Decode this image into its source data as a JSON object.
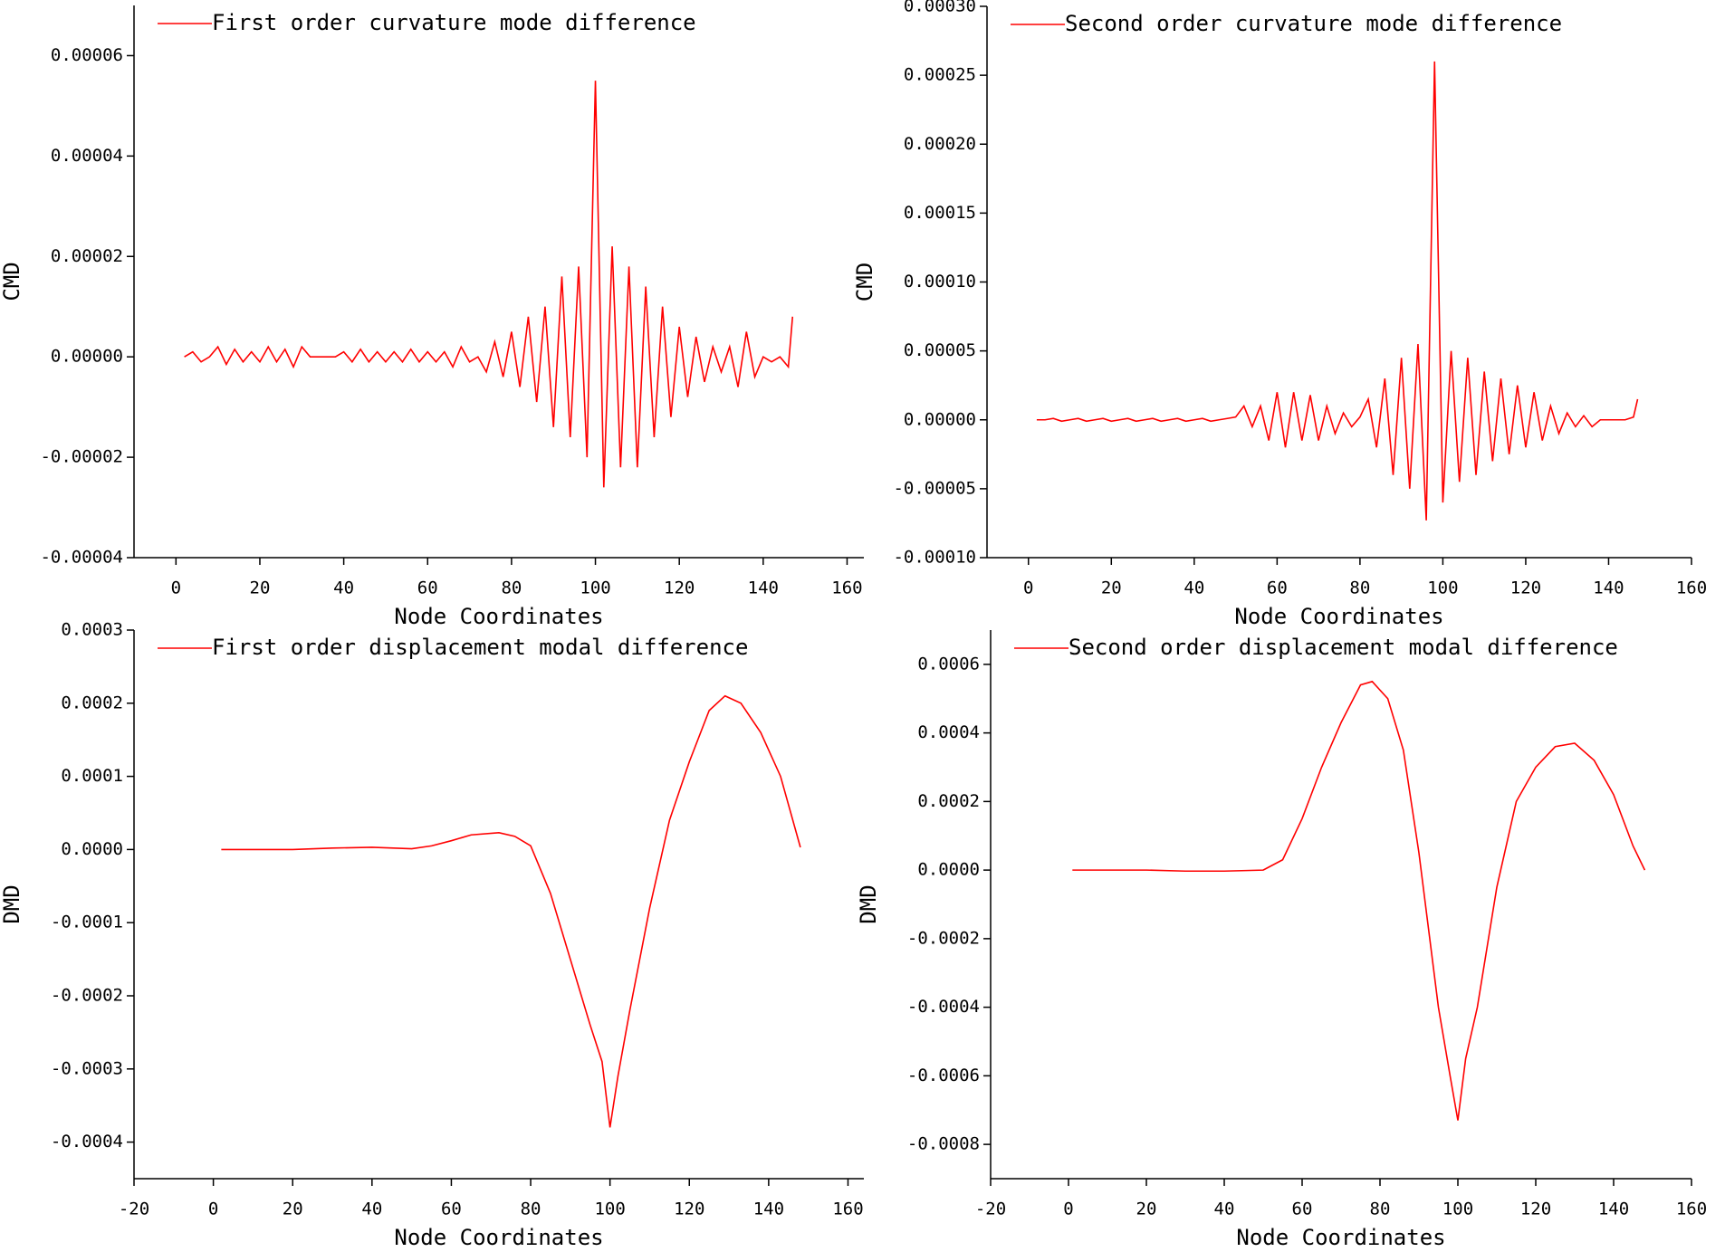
{
  "chart_data": [
    {
      "type": "line",
      "xlabel": "Node Coordinates",
      "ylabel": "CMD",
      "x": [
        2,
        4,
        6,
        8,
        10,
        12,
        14,
        16,
        18,
        20,
        22,
        24,
        26,
        28,
        30,
        32,
        34,
        36,
        38,
        40,
        42,
        44,
        46,
        48,
        50,
        52,
        54,
        56,
        58,
        60,
        62,
        64,
        66,
        68,
        70,
        72,
        74,
        76,
        78,
        80,
        82,
        84,
        86,
        88,
        90,
        92,
        94,
        96,
        98,
        100,
        102,
        104,
        106,
        108,
        110,
        112,
        114,
        116,
        118,
        120,
        122,
        124,
        126,
        128,
        130,
        132,
        134,
        136,
        138,
        140,
        142,
        144,
        146,
        147
      ],
      "series": [
        {
          "name": "First order curvature mode difference",
          "color": "#ff0000",
          "values": [
            0,
            1e-06,
            -1e-06,
            0,
            2e-06,
            -1.5e-06,
            1.5e-06,
            -1e-06,
            1e-06,
            -1e-06,
            2e-06,
            -1e-06,
            1.5e-06,
            -2e-06,
            2e-06,
            0,
            0,
            0,
            0,
            1e-06,
            -1e-06,
            1.5e-06,
            -1e-06,
            1e-06,
            -1e-06,
            1e-06,
            -1e-06,
            1.5e-06,
            -1e-06,
            1e-06,
            -1e-06,
            1e-06,
            -2e-06,
            2e-06,
            -1e-06,
            0,
            -3e-06,
            3e-06,
            -4e-06,
            5e-06,
            -6e-06,
            8e-06,
            -9e-06,
            1e-05,
            -1.4e-05,
            1.6e-05,
            -1.6e-05,
            1.8e-05,
            -2e-05,
            5.5e-05,
            -2.6e-05,
            2.2e-05,
            -2.2e-05,
            1.8e-05,
            -2.2e-05,
            1.4e-05,
            -1.6e-05,
            1e-05,
            -1.2e-05,
            6e-06,
            -8e-06,
            4e-06,
            -5e-06,
            2e-06,
            -3e-06,
            2e-06,
            -6e-06,
            5e-06,
            -4e-06,
            0,
            -1e-06,
            0,
            -2e-06,
            8e-06
          ]
        }
      ],
      "xlim": [
        -10,
        164
      ],
      "xticks": [
        0,
        20,
        40,
        60,
        80,
        100,
        120,
        140,
        160
      ],
      "ylim": [
        -4e-05,
        7e-05
      ],
      "yticks": [
        -4e-05,
        -2e-05,
        {
          "value": 0,
          "label": "0.00000"
        },
        2e-05,
        4e-05,
        6e-05
      ]
    },
    {
      "type": "line",
      "xlabel": "Node Coordinates",
      "ylabel": "CMD",
      "x": [
        2,
        4,
        6,
        8,
        10,
        12,
        14,
        16,
        18,
        20,
        22,
        24,
        26,
        28,
        30,
        32,
        34,
        36,
        38,
        40,
        42,
        44,
        46,
        48,
        50,
        52,
        54,
        56,
        58,
        60,
        62,
        64,
        66,
        68,
        70,
        72,
        74,
        76,
        78,
        80,
        82,
        84,
        86,
        88,
        90,
        92,
        94,
        96,
        98,
        100,
        102,
        104,
        106,
        108,
        110,
        112,
        114,
        116,
        118,
        120,
        122,
        124,
        126,
        128,
        130,
        132,
        134,
        136,
        138,
        140,
        142,
        144,
        146,
        147
      ],
      "series": [
        {
          "name": "Second order curvature mode difference",
          "color": "#ff0000",
          "values": [
            0,
            0,
            1e-06,
            -1e-06,
            0,
            1e-06,
            -1e-06,
            0,
            1e-06,
            -1e-06,
            0,
            1e-06,
            -1e-06,
            0,
            1e-06,
            -1e-06,
            0,
            1e-06,
            -1e-06,
            0,
            1e-06,
            -1e-06,
            0,
            1e-06,
            2e-06,
            1e-05,
            -5e-06,
            1e-05,
            -1.5e-05,
            2e-05,
            -2e-05,
            2e-05,
            -1.5e-05,
            1.8e-05,
            -1.5e-05,
            1e-05,
            -1e-05,
            5e-06,
            -5e-06,
            2e-06,
            1.5e-05,
            -2e-05,
            3e-05,
            -4e-05,
            4.5e-05,
            -5e-05,
            5.5e-05,
            -7.3e-05,
            0.00026,
            -6e-05,
            5e-05,
            -4.5e-05,
            4.5e-05,
            -4e-05,
            3.5e-05,
            -3e-05,
            3e-05,
            -2.5e-05,
            2.5e-05,
            -2e-05,
            2e-05,
            -1.5e-05,
            1e-05,
            -1e-05,
            5e-06,
            -5e-06,
            3e-06,
            -5e-06,
            0,
            0,
            0,
            0,
            2e-06,
            1.5e-05
          ]
        }
      ],
      "xlim": [
        -10,
        160
      ],
      "xticks": [
        0,
        20,
        40,
        60,
        80,
        100,
        120,
        140,
        160
      ],
      "ylim": [
        -0.0001,
        0.0003
      ],
      "yticks": [
        {
          "value": -0.0001,
          "label": "-0.00010"
        },
        -5e-05,
        {
          "value": 0,
          "label": "0.00000"
        },
        5e-05,
        {
          "value": 0.0001,
          "label": "0.00010"
        },
        0.00015,
        {
          "value": 0.0002,
          "label": "0.00020"
        },
        0.00025,
        {
          "value": 0.0003,
          "label": "0.00030"
        }
      ]
    },
    {
      "type": "line",
      "xlabel": "Node Coordinates",
      "ylabel": "DMD",
      "x": [
        2,
        10,
        20,
        30,
        40,
        50,
        55,
        60,
        65,
        72,
        76,
        80,
        85,
        90,
        95,
        98,
        100,
        102,
        105,
        110,
        115,
        120,
        125,
        129,
        133,
        138,
        143,
        148
      ],
      "series": [
        {
          "name": "First order displacement modal difference",
          "color": "#ff0000",
          "values": [
            0,
            0,
            0,
            2e-06,
            3e-06,
            1e-06,
            5e-06,
            1.2e-05,
            2e-05,
            2.3e-05,
            1.8e-05,
            5e-06,
            -6e-05,
            -0.00015,
            -0.00024,
            -0.00029,
            -0.00038,
            -0.00031,
            -0.00022,
            -8e-05,
            4e-05,
            0.00012,
            0.00019,
            0.00021,
            0.0002,
            0.00016,
            0.0001,
            3e-06
          ]
        }
      ],
      "xlim": [
        -20,
        164
      ],
      "xticks": [
        -20,
        0,
        20,
        40,
        60,
        80,
        100,
        120,
        140,
        160
      ],
      "ylim": [
        -0.00045,
        0.0003
      ],
      "yticks": [
        -0.0004,
        -0.0003,
        -0.0002,
        -0.0001,
        {
          "value": 0,
          "label": "0.0000"
        },
        0.0001,
        0.0002,
        0.0003
      ]
    },
    {
      "type": "line",
      "xlabel": "Node Coordinates",
      "ylabel": "DMD",
      "x": [
        1,
        20,
        30,
        40,
        50,
        55,
        60,
        65,
        70,
        75,
        78,
        82,
        86,
        90,
        95,
        98,
        100,
        102,
        105,
        110,
        115,
        120,
        125,
        130,
        135,
        140,
        145,
        148
      ],
      "series": [
        {
          "name": "Second order displacement modal difference",
          "color": "#ff0000",
          "values": [
            0,
            0,
            -3e-06,
            -3e-06,
            0,
            3e-05,
            0.00015,
            0.0003,
            0.00043,
            0.00054,
            0.00055,
            0.0005,
            0.00035,
            5e-05,
            -0.0004,
            -0.0006,
            -0.00073,
            -0.00055,
            -0.0004,
            -5e-05,
            0.0002,
            0.0003,
            0.00036,
            0.00037,
            0.00032,
            0.00022,
            7e-05,
            0
          ]
        }
      ],
      "xlim": [
        -20,
        160
      ],
      "xticks": [
        -20,
        0,
        20,
        40,
        60,
        80,
        100,
        120,
        140,
        160
      ],
      "ylim": [
        -0.0009,
        0.0007
      ],
      "yticks": [
        -0.0008,
        -0.0006,
        -0.0004,
        -0.0002,
        {
          "value": 0,
          "label": "0.0000"
        },
        0.0002,
        0.0004,
        0.0006
      ]
    }
  ]
}
